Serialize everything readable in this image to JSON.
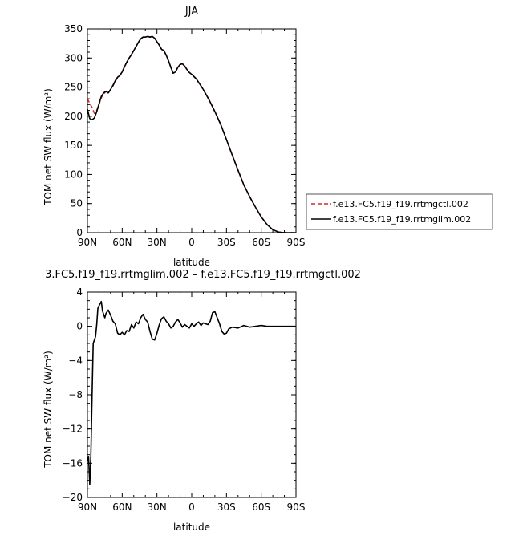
{
  "chart_data": [
    {
      "type": "line",
      "title": "JJA",
      "xlabel": "latitude",
      "ylabel": "TOM net SW flux (W/m²)",
      "xlim": [
        90,
        -90
      ],
      "ylim": [
        0,
        350
      ],
      "xticks": [
        90,
        60,
        30,
        0,
        -30,
        -60,
        -90
      ],
      "xtick_labels": [
        "90N",
        "60N",
        "30N",
        "0",
        "30S",
        "60S",
        "90S"
      ],
      "yticks": [
        0,
        50,
        100,
        150,
        200,
        250,
        300,
        350
      ],
      "ytick_labels": [
        "0",
        "50",
        "100",
        "150",
        "200",
        "250",
        "300",
        "350"
      ],
      "legend_position": "right",
      "series": [
        {
          "name": "f.e13.FC5.f19_f19.rrtmgctl.002",
          "color": "#d62728",
          "dash": "dashed",
          "x": [
            90,
            88,
            86,
            84,
            82,
            80,
            78,
            76,
            74,
            72,
            70,
            68,
            66,
            64,
            62,
            60,
            58,
            56,
            54,
            52,
            50,
            48,
            46,
            44,
            42,
            40,
            38,
            36,
            34,
            32,
            30,
            28,
            26,
            24,
            22,
            20,
            18,
            16,
            14,
            12,
            10,
            8,
            6,
            4,
            2,
            0,
            -2,
            -4,
            -6,
            -8,
            -10,
            -15,
            -20,
            -25,
            -30,
            -35,
            -40,
            -45,
            -50,
            -55,
            -60,
            -65,
            -70,
            -75,
            -80,
            -85,
            -90
          ],
          "y": [
            230,
            222,
            215,
            205,
            210,
            220,
            232,
            238,
            243,
            240,
            246,
            252,
            260,
            266,
            270,
            276,
            285,
            293,
            300,
            306,
            313,
            320,
            327,
            333,
            336,
            336,
            337,
            336,
            337,
            334,
            328,
            322,
            315,
            313,
            305,
            295,
            284,
            274,
            276,
            284,
            289,
            290,
            286,
            280,
            275,
            272,
            268,
            264,
            258,
            252,
            246,
            228,
            208,
            186,
            160,
            133,
            107,
            82,
            62,
            44,
            27,
            14,
            5,
            1,
            0,
            0,
            0
          ]
        },
        {
          "name": "f.e13.FC5.f19_f19.rrtmglim.002",
          "color": "#000000",
          "dash": "solid",
          "x": [
            90,
            88,
            86,
            84,
            82,
            80,
            78,
            76,
            74,
            72,
            70,
            68,
            66,
            64,
            62,
            60,
            58,
            56,
            54,
            52,
            50,
            48,
            46,
            44,
            42,
            40,
            38,
            36,
            34,
            32,
            30,
            28,
            26,
            24,
            22,
            20,
            18,
            16,
            14,
            12,
            10,
            8,
            6,
            4,
            2,
            0,
            -2,
            -4,
            -6,
            -8,
            -10,
            -15,
            -20,
            -25,
            -30,
            -35,
            -40,
            -45,
            -50,
            -55,
            -60,
            -65,
            -70,
            -75,
            -80,
            -85,
            -90
          ],
          "y": [
            212,
            196,
            194,
            197,
            208,
            221,
            234,
            240,
            243,
            240,
            246,
            253,
            261,
            267,
            270,
            276,
            285,
            293,
            300,
            306,
            313,
            320,
            327,
            333,
            336,
            336,
            337,
            336,
            337,
            334,
            328,
            322,
            315,
            313,
            305,
            295,
            284,
            274,
            276,
            284,
            289,
            290,
            286,
            280,
            275,
            272,
            268,
            264,
            258,
            252,
            246,
            228,
            208,
            186,
            160,
            133,
            107,
            82,
            62,
            44,
            27,
            14,
            5,
            1,
            0,
            0,
            0
          ]
        }
      ]
    },
    {
      "type": "line",
      "title": "3.FC5.f19_f19.rrtmglim.002 – f.e13.FC5.f19_f19.rrtmgctl.002",
      "xlabel": "latitude",
      "ylabel": "TOM net SW flux (W/m²)",
      "xlim": [
        90,
        -90
      ],
      "ylim": [
        -20,
        4
      ],
      "xticks": [
        90,
        60,
        30,
        0,
        -30,
        -60,
        -90
      ],
      "xtick_labels": [
        "90N",
        "60N",
        "30N",
        "0",
        "30S",
        "60S",
        "90S"
      ],
      "yticks": [
        -20,
        -16,
        -12,
        -8,
        -4,
        0,
        4
      ],
      "ytick_labels": [
        "−20",
        "−16",
        "−12",
        "−8",
        "−4",
        "0",
        "4"
      ],
      "series": [
        {
          "color": "#000000",
          "dash": "solid",
          "x": [
            90,
            89,
            88,
            87,
            86,
            85,
            84,
            83,
            82,
            81,
            80,
            78,
            77,
            75,
            74,
            72,
            70,
            68,
            66,
            64,
            62,
            60,
            58,
            56,
            54,
            52,
            50,
            48,
            46,
            44,
            42,
            40,
            38,
            36,
            34,
            32,
            30,
            28,
            26,
            24,
            22,
            20,
            18,
            16,
            14,
            12,
            10,
            8,
            6,
            4,
            2,
            0,
            -2,
            -4,
            -6,
            -8,
            -10,
            -12,
            -14,
            -16,
            -18,
            -20,
            -22,
            -24,
            -26,
            -28,
            -30,
            -32,
            -35,
            -40,
            -45,
            -50,
            -55,
            -60,
            -65,
            -70,
            -80,
            -90
          ],
          "y": [
            -15.8,
            -15.2,
            -18.5,
            -15,
            -8,
            -2,
            -1.6,
            -1.2,
            0.2,
            2.1,
            2.4,
            2.9,
            1.8,
            1.0,
            1.5,
            1.9,
            1.3,
            0.6,
            0.3,
            -0.8,
            -1.0,
            -0.7,
            -1.0,
            -0.5,
            -0.6,
            0.2,
            -0.2,
            0.5,
            0.3,
            1.0,
            1.4,
            0.8,
            0.5,
            -0.6,
            -1.5,
            -1.6,
            -0.8,
            0.2,
            0.9,
            1.1,
            0.6,
            0.3,
            -0.2,
            0.0,
            0.5,
            0.8,
            0.4,
            -0.1,
            0.2,
            0.0,
            -0.2,
            0.3,
            0.0,
            0.3,
            0.5,
            0.1,
            0.4,
            0.3,
            0.2,
            0.6,
            1.6,
            1.7,
            1.0,
            0.3,
            -0.6,
            -0.9,
            -0.8,
            -0.3,
            -0.1,
            -0.2,
            0.1,
            -0.1,
            0.0,
            0.1,
            0.0,
            0.0,
            0.0,
            0.0
          ]
        }
      ]
    }
  ]
}
